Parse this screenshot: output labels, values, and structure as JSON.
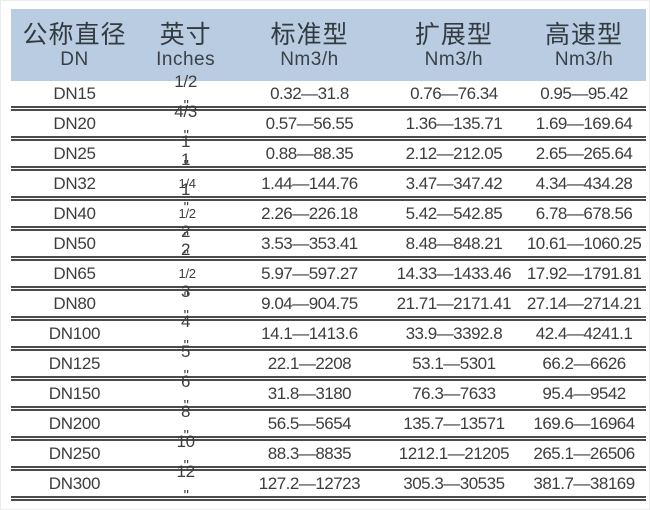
{
  "table": {
    "colors": {
      "header_bg": "#b9cce2",
      "text": "#3d3d3d",
      "rule_line": "#4c4c4c"
    },
    "header": {
      "columns": [
        {
          "label": "公称直径",
          "sublabel": "DN"
        },
        {
          "label": "英寸",
          "sublabel": "Inches"
        },
        {
          "label": "标准型",
          "sublabel": "Nm3/h"
        },
        {
          "label": "扩展型",
          "sublabel": "Nm3/h"
        },
        {
          "label": "高速型",
          "sublabel": "Nm3/h"
        }
      ]
    },
    "rows": [
      {
        "dn": "DN15",
        "inches_main": "1/2",
        "inches_frac": "",
        "inches_mark": "\"",
        "standard": "0.32—31.8",
        "extended": "0.76—76.34",
        "high_speed": "0.95—95.42"
      },
      {
        "dn": "DN20",
        "inches_main": "4/3",
        "inches_frac": "",
        "inches_mark": "\"",
        "standard": "0.57—56.55",
        "extended": "1.36—135.71",
        "high_speed": "1.69—169.64"
      },
      {
        "dn": "DN25",
        "inches_main": "1",
        "inches_frac": "",
        "inches_mark": "\"",
        "standard": "0.88—88.35",
        "extended": "2.12—212.05",
        "high_speed": "2.65—265.64"
      },
      {
        "dn": "DN32",
        "inches_main": "1",
        "inches_frac": "1/4",
        "inches_mark": "\"",
        "standard": "1.44—144.76",
        "extended": "3.47—347.42",
        "high_speed": "4.34—434.28"
      },
      {
        "dn": "DN40",
        "inches_main": "1",
        "inches_frac": "1/2",
        "inches_mark": "\"",
        "standard": "2.26—226.18",
        "extended": "5.42—542.85",
        "high_speed": "6.78—678.56"
      },
      {
        "dn": "DN50",
        "inches_main": "2",
        "inches_frac": "",
        "inches_mark": "\"",
        "standard": "3.53—353.41",
        "extended": "8.48—848.21",
        "high_speed": "10.61—1060.25"
      },
      {
        "dn": "DN65",
        "inches_main": "2",
        "inches_frac": "1/2",
        "inches_mark": "\"",
        "standard": "5.97—597.27",
        "extended": "14.33—1433.46",
        "high_speed": "17.92—1791.81"
      },
      {
        "dn": "DN80",
        "inches_main": "3",
        "inches_frac": "",
        "inches_mark": "\"",
        "standard": "9.04—904.75",
        "extended": "21.71—2171.41",
        "high_speed": "27.14—2714.21"
      },
      {
        "dn": "DN100",
        "inches_main": "4",
        "inches_frac": "",
        "inches_mark": "\"",
        "standard": "14.1—1413.6",
        "extended": "33.9—3392.8",
        "high_speed": "42.4—4241.1"
      },
      {
        "dn": "DN125",
        "inches_main": "5",
        "inches_frac": "",
        "inches_mark": "\"",
        "standard": "22.1—2208",
        "extended": "53.1—5301",
        "high_speed": "66.2—6626"
      },
      {
        "dn": "DN150",
        "inches_main": "6",
        "inches_frac": "",
        "inches_mark": "\"",
        "standard": "31.8—3180",
        "extended": "76.3—7633",
        "high_speed": "95.4—9542"
      },
      {
        "dn": "DN200",
        "inches_main": "8",
        "inches_frac": "",
        "inches_mark": "\"",
        "standard": "56.5—5654",
        "extended": "135.7—13571",
        "high_speed": "169.6—16964"
      },
      {
        "dn": "DN250",
        "inches_main": "10",
        "inches_frac": "",
        "inches_mark": "\"",
        "standard": "88.3—8835",
        "extended": "1212.1—21205",
        "high_speed": "265.1—26506"
      },
      {
        "dn": "DN300",
        "inches_main": "12",
        "inches_frac": "",
        "inches_mark": "\"",
        "standard": "127.2—12723",
        "extended": "305.3—30535",
        "high_speed": "381.7—38169"
      }
    ]
  }
}
